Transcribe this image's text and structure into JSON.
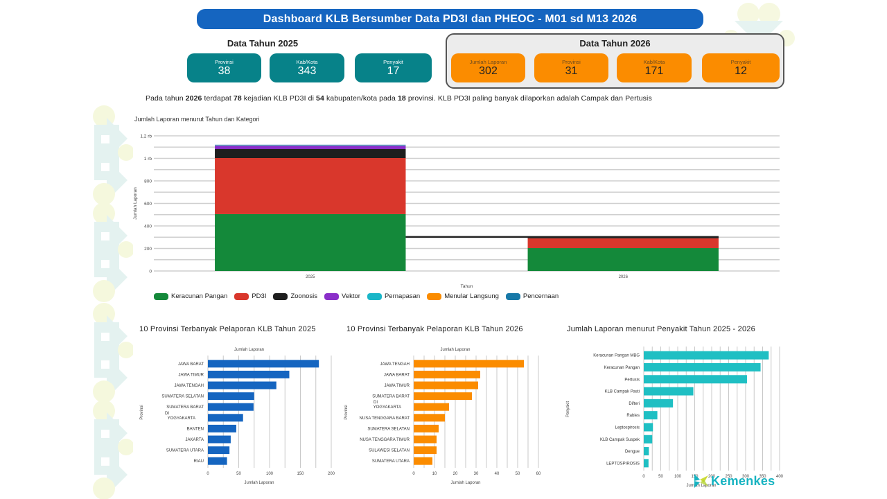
{
  "header": {
    "title": "Dashboard KLB Bersumber Data PD3I dan PHEOC - M01 sd M13 2026"
  },
  "data_2025": {
    "title": "Data Tahun 2025",
    "cards": [
      {
        "label": "Provinsi",
        "value": "38"
      },
      {
        "label": "Kab/Kota",
        "value": "343"
      },
      {
        "label": "Penyakit",
        "value": "17"
      }
    ]
  },
  "data_2026": {
    "title": "Data Tahun 2026",
    "cards": [
      {
        "label": "Jumlah Laporan",
        "value": "302"
      },
      {
        "label": "Provinsi",
        "value": "31"
      },
      {
        "label": "Kab/Kota",
        "value": "171"
      },
      {
        "label": "Penyakit",
        "value": "12"
      }
    ]
  },
  "summary": {
    "p1": "Pada tahun ",
    "year": "2026",
    "p2": " terdapat ",
    "events": "78",
    "p3": " kejadian KLB PD3I di ",
    "districts": "54",
    "p4": " kabupaten/kota pada ",
    "provinces": "18",
    "p5": " provinsi. KLB PD3I paling banyak dilaporkan adalah Campak dan Pertusis"
  },
  "colors": {
    "title_bar": "#1565c0",
    "teal_card": "#078289",
    "orange_card": "#fb8c00",
    "bar_2025": "#1565c0",
    "bar_2026": "#fb8c00",
    "bar_disease": "#1fbfc3"
  },
  "chart_data": [
    {
      "id": "stacked",
      "type": "bar",
      "stacked": true,
      "title": "Jumlah Laporan menurut Tahun dan Kategori",
      "xlabel": "Tahun",
      "ylabel": "Jumlah Laporan",
      "categories": [
        "2025",
        "2026"
      ],
      "ylim": [
        0,
        1200
      ],
      "yticks": [
        0,
        200,
        400,
        600,
        800,
        1000,
        1200
      ],
      "ytick_labels": [
        "0",
        "200",
        "400",
        "600",
        "800",
        "1 rb",
        "1,2 rb"
      ],
      "grid": true,
      "legend": "bottom",
      "series": [
        {
          "name": "Keracunan Pangan",
          "color": "#14893a",
          "values": [
            505,
            203
          ]
        },
        {
          "name": "PD3I",
          "color": "#d9372c",
          "values": [
            498,
            87
          ]
        },
        {
          "name": "Zoonosis",
          "color": "#1e1e1e",
          "values": [
            80,
            12
          ]
        },
        {
          "name": "Vektor",
          "color": "#8a2fc9",
          "values": [
            30,
            0
          ]
        },
        {
          "name": "Pernapasan",
          "color": "#1ab6c8",
          "values": [
            5,
            0
          ]
        },
        {
          "name": "Menular Langsung",
          "color": "#fb8c00",
          "values": [
            1,
            0
          ]
        },
        {
          "name": "Pencernaan",
          "color": "#1779a8",
          "values": [
            2,
            0
          ]
        }
      ]
    },
    {
      "id": "prov2025",
      "type": "bar",
      "orientation": "horizontal",
      "title": "10 Provinsi Terbanyak Pelaporan KLB Tahun 2025",
      "top_label": "Jumlah Laporan",
      "xlabel": "Jumlah Laporan",
      "ylabel": "Provinsi",
      "categories": [
        "JAWA BARAT",
        "JAWA TIMUR",
        "JAWA TENGAH",
        "SUMATERA SELATAN",
        "SUMATERA BARAT",
        "DI YOGYAKARTA",
        "BANTEN",
        "JAKARTA",
        "SUMATERA UTARA",
        "RIAU"
      ],
      "values": [
        180,
        132,
        111,
        75,
        74,
        57,
        46,
        37,
        35,
        31
      ],
      "xlim": [
        0,
        200
      ],
      "xticks": [
        0,
        50,
        100,
        150,
        200
      ],
      "minor_step": 25,
      "color": "#1565c0"
    },
    {
      "id": "prov2026",
      "type": "bar",
      "orientation": "horizontal",
      "title": "10 Provinsi Terbanyak Pelaporan KLB Tahun 2026",
      "top_label": "Jumlah Laporan",
      "xlabel": "Jumlah Laporan",
      "ylabel": "Provinsi",
      "categories": [
        "JAWA TENGAH",
        "JAWA BARAT",
        "JAWA TIMUR",
        "SUMATERA BARAT",
        "DI YOGYAKARTA",
        "NUSA TENGGARA BARAT",
        "SUMATERA SELATAN",
        "NUSA TENGGARA TIMUR",
        "SULAWESI SELATAN",
        "SUMATERA UTARA"
      ],
      "values": [
        53,
        32,
        31,
        28,
        17,
        15,
        12,
        11,
        11,
        9
      ],
      "xlim": [
        0,
        60
      ],
      "xticks": [
        0,
        10,
        20,
        30,
        40,
        50,
        60
      ],
      "minor_step": 5,
      "color": "#fb8c00"
    },
    {
      "id": "disease",
      "type": "bar",
      "orientation": "horizontal",
      "title": "Jumlah Laporan menurut Penyakit Tahun 2025 - 2026",
      "xlabel": "Jumlah Laporan",
      "ylabel": "Penyakit",
      "categories": [
        "Keracunan Pangan MBG",
        "Keracunan Pangan",
        "Pertusis",
        "KLB Campak Pasti",
        "Difteri",
        "Rabies",
        "Leptospirosis",
        "KLB Campak Suspek",
        "Dengue",
        "LEPTOSPIROSIS"
      ],
      "values": [
        368,
        344,
        304,
        146,
        86,
        40,
        27,
        25,
        15,
        14
      ],
      "xlim": [
        0,
        400
      ],
      "xticks": [
        0,
        50,
        100,
        150,
        200,
        250,
        300,
        350,
        400
      ],
      "minor_step": 25,
      "color": "#1fbfc3"
    }
  ],
  "logo": {
    "text": "Kemenkes"
  }
}
